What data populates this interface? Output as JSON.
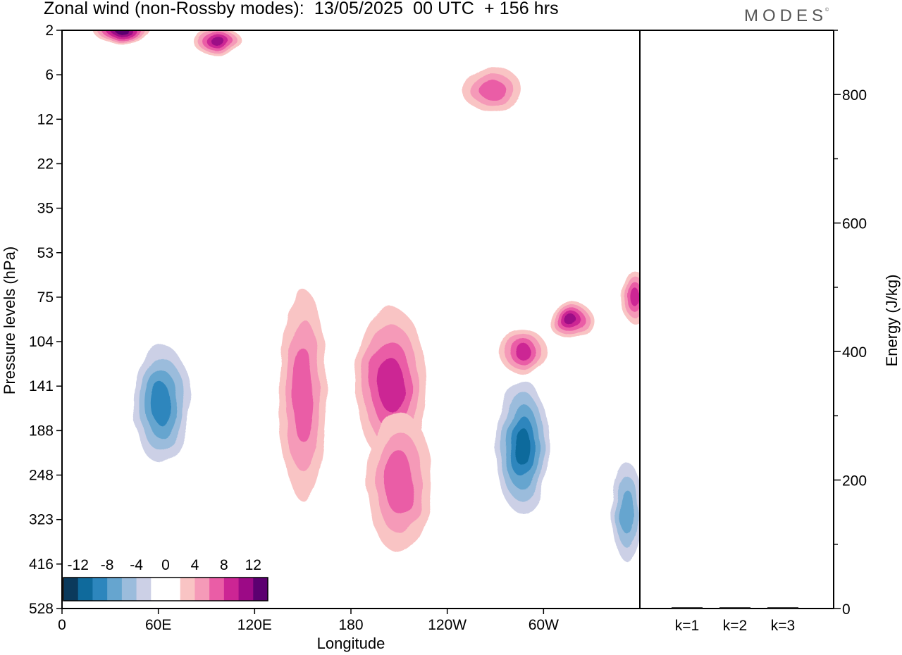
{
  "title": "Zonal wind (non-Rossby modes):  13/05/2025  00 UTC  + 156 hrs",
  "brand": {
    "text": "MODES",
    "mark": "©"
  },
  "chart_data": [
    {
      "type": "heatmap",
      "title": "Zonal wind (non-Rossby modes):  13/05/2025  00 UTC  + 156 hrs",
      "xlabel": "Longitude",
      "ylabel": "Pressure levels (hPa)",
      "x_ticks": [
        "0",
        "60E",
        "120E",
        "180",
        "120W",
        "60W"
      ],
      "y_ticks": [
        "2",
        "6",
        "12",
        "22",
        "35",
        "53",
        "75",
        "104",
        "141",
        "188",
        "248",
        "323",
        "416",
        "528"
      ],
      "y_scale": "pressure levels, top = 2 hPa",
      "colorbar": {
        "labels": [
          "-12",
          "-8",
          "-4",
          "0",
          "4",
          "8",
          "12"
        ],
        "colors": [
          "#0b3a5c",
          "#0f6a9c",
          "#2d86bd",
          "#66a5cf",
          "#9bbcdc",
          "#ccd0e6",
          "#ffffff",
          "#ffffff",
          "#f9c4c4",
          "#f59ab8",
          "#ea5da6",
          "#cc2594",
          "#9c0a86",
          "#5c0070"
        ],
        "placement": "bottom-left"
      },
      "features": [
        {
          "label": "positive",
          "lon": 150,
          "p": 150,
          "value": 6
        },
        {
          "label": "positive",
          "lon": 205,
          "p": 140,
          "value": 8
        },
        {
          "label": "positive",
          "lon": 210,
          "p": 260,
          "value": 7
        },
        {
          "label": "negative",
          "lon": 62,
          "p": 160,
          "value": -9
        },
        {
          "label": "negative",
          "lon": 287,
          "p": 210,
          "value": -11
        },
        {
          "label": "positive",
          "lon": 287,
          "p": 112,
          "value": 9
        },
        {
          "label": "positive",
          "lon": 317,
          "p": 90,
          "value": 10
        },
        {
          "label": "positive",
          "lon": 357,
          "p": 75,
          "value": 9
        },
        {
          "label": "positive",
          "lon": 268,
          "p": 8,
          "value": 7
        },
        {
          "label": "positive",
          "lon": 37,
          "p": 2,
          "value": 12
        },
        {
          "label": "positive",
          "lon": 97,
          "p": 3,
          "value": 11
        },
        {
          "label": "negative",
          "lon": 352,
          "p": 310,
          "value": -7
        }
      ]
    },
    {
      "type": "bar",
      "categories": [
        "k=1",
        "k=2",
        "k=3"
      ],
      "values": [
        1,
        1,
        1
      ],
      "ylabel": "Energy (J/kg)",
      "ylim": [
        0,
        900
      ],
      "y_ticks": [
        "0",
        "200",
        "400",
        "600",
        "800"
      ]
    }
  ]
}
